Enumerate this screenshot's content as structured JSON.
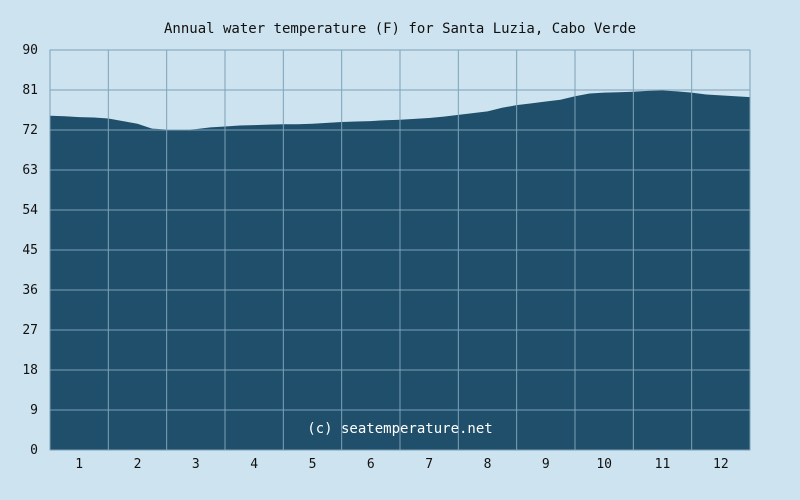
{
  "colors": {
    "background": "#cde3ef",
    "area_fill": "#1f4f6a",
    "grid": "#7da2b8",
    "text": "#111111",
    "credit_text": "#ffffff"
  },
  "chart_data": {
    "type": "area",
    "title": "Annual water temperature (F) for Santa Luzia, Cabo Verde",
    "credit": "(c) seatemperature.net",
    "xlabel": "",
    "ylabel": "",
    "x_tick_labels": [
      "1",
      "2",
      "3",
      "4",
      "5",
      "6",
      "7",
      "8",
      "9",
      "10",
      "11",
      "12"
    ],
    "y_ticks": [
      0,
      9,
      18,
      27,
      36,
      45,
      54,
      63,
      72,
      81,
      90
    ],
    "ylim": [
      0,
      90
    ],
    "xlim": [
      0,
      12
    ],
    "grid": true,
    "legend": "none",
    "series": [
      {
        "x": [
          0,
          0.25,
          0.5,
          0.75,
          1.0,
          1.25,
          1.5,
          1.75,
          2.0,
          2.25,
          2.5,
          2.75,
          3.0,
          3.25,
          3.5,
          3.75,
          4.0,
          4.25,
          4.5,
          4.75,
          5.0,
          5.25,
          5.5,
          5.75,
          6.0,
          6.25,
          6.5,
          6.75,
          7.0,
          7.25,
          7.5,
          7.75,
          8.0,
          8.25,
          8.5,
          8.75,
          9.0,
          9.25,
          9.5,
          9.75,
          10.0,
          10.25,
          10.5,
          10.75,
          11.0,
          11.25,
          11.5,
          11.75,
          12.0
        ],
        "values": [
          75.2,
          75.1,
          74.9,
          74.8,
          74.6,
          74.0,
          73.4,
          72.3,
          72.1,
          72.0,
          72.2,
          72.6,
          72.8,
          73.0,
          73.1,
          73.2,
          73.3,
          73.3,
          73.4,
          73.6,
          73.8,
          73.9,
          74.0,
          74.2,
          74.3,
          74.5,
          74.7,
          75.0,
          75.4,
          75.8,
          76.2,
          77.0,
          77.6,
          78.0,
          78.4,
          78.8,
          79.6,
          80.2,
          80.4,
          80.5,
          80.6,
          80.8,
          80.9,
          80.7,
          80.4,
          80.0,
          79.8,
          79.6,
          79.4
        ]
      }
    ]
  }
}
